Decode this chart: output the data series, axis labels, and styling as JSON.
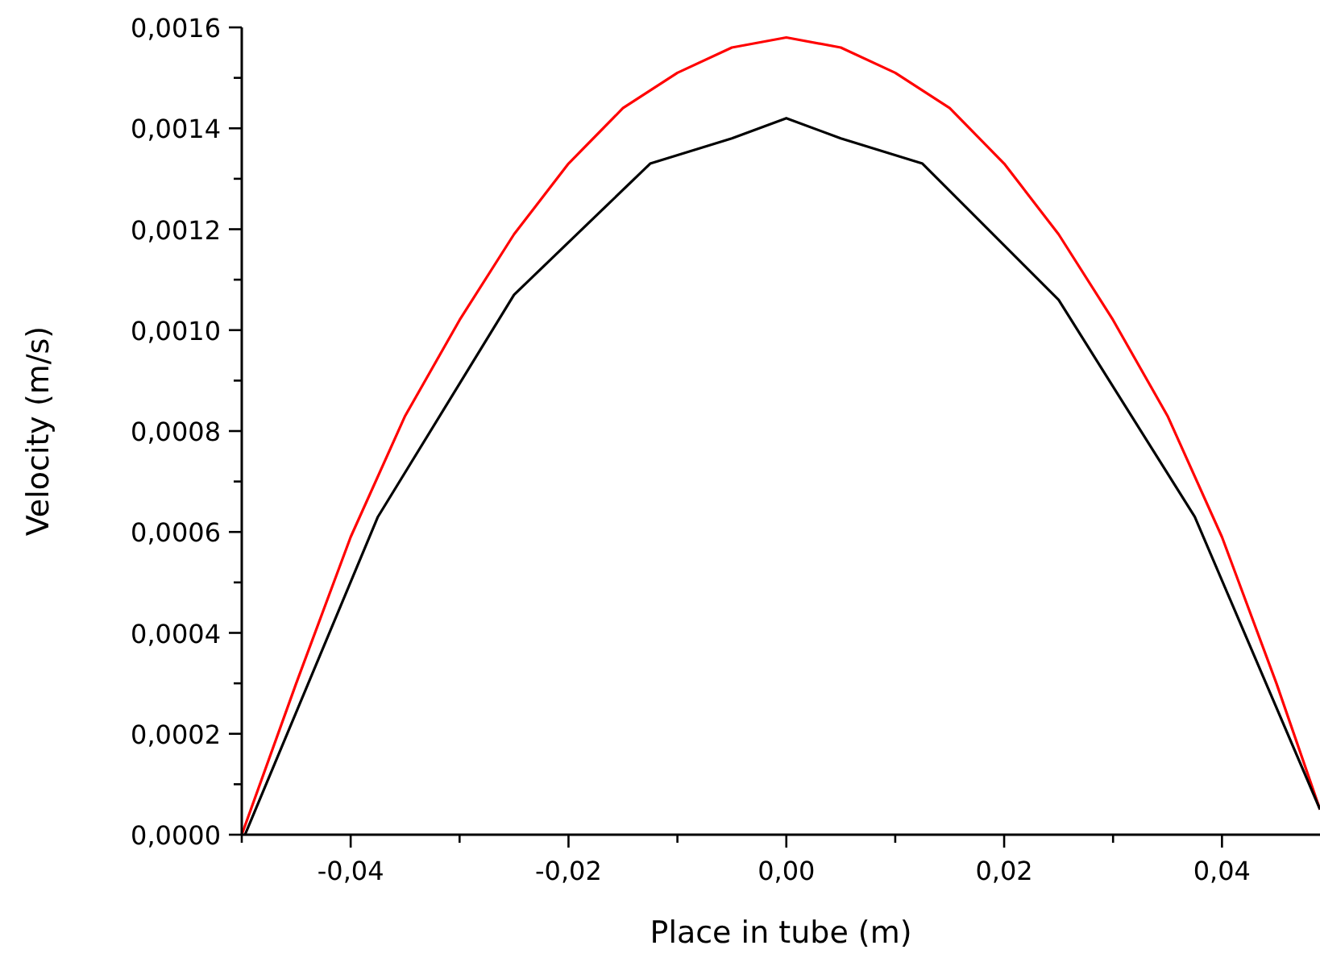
{
  "chart_data": {
    "type": "line",
    "xlabel": "Place in tube (m)",
    "ylabel": "Velocity (m/s)",
    "xlim": [
      -0.05,
      0.049
    ],
    "ylim": [
      0,
      0.0016
    ],
    "xticks": [
      {
        "value": -0.05,
        "label": null
      },
      {
        "value": -0.04,
        "label": "-0,04"
      },
      {
        "value": -0.03,
        "label": null
      },
      {
        "value": -0.02,
        "label": "-0,02"
      },
      {
        "value": -0.01,
        "label": null
      },
      {
        "value": 0,
        "label": "0,00"
      },
      {
        "value": 0.01,
        "label": null
      },
      {
        "value": 0.02,
        "label": "0,02"
      },
      {
        "value": 0.03,
        "label": null
      },
      {
        "value": 0.04,
        "label": "0,04"
      }
    ],
    "yticks": [
      {
        "value": 0,
        "label": "0,0000"
      },
      {
        "value": 0.0001,
        "label": null
      },
      {
        "value": 0.0002,
        "label": "0,0002"
      },
      {
        "value": 0.0003,
        "label": null
      },
      {
        "value": 0.0004,
        "label": "0,0004"
      },
      {
        "value": 0.0005,
        "label": null
      },
      {
        "value": 0.0006,
        "label": "0,0006"
      },
      {
        "value": 0.0007,
        "label": null
      },
      {
        "value": 0.0008,
        "label": "0,0008"
      },
      {
        "value": 0.0009,
        "label": null
      },
      {
        "value": 0.001,
        "label": "0,0010"
      },
      {
        "value": 0.0011,
        "label": null
      },
      {
        "value": 0.0012,
        "label": "0,0012"
      },
      {
        "value": 0.0013,
        "label": null
      },
      {
        "value": 0.0014,
        "label": "0,0014"
      },
      {
        "value": 0.0015,
        "label": null
      },
      {
        "value": 0.0016,
        "label": "0,0016"
      }
    ],
    "grid": false,
    "marker": "none",
    "line_style": "solid",
    "series": [
      {
        "color": "#ff0000",
        "x": [
          -0.05,
          -0.045,
          -0.04,
          -0.035,
          -0.03,
          -0.025,
          -0.02,
          -0.015,
          -0.01,
          -0.005,
          0,
          0.005,
          0.01,
          0.015,
          0.02,
          0.025,
          0.03,
          0.035,
          0.04,
          0.045,
          0.049
        ],
        "values": [
          0,
          0.0003,
          0.00059,
          0.00083,
          0.00102,
          0.00119,
          0.00133,
          0.00144,
          0.00151,
          0.00156,
          0.00158,
          0.00156,
          0.00151,
          0.00144,
          0.00133,
          0.00119,
          0.00102,
          0.00083,
          0.00059,
          0.0003,
          5e-05
        ]
      },
      {
        "color": "#000000",
        "x": [
          -0.0497,
          -0.0375,
          -0.025,
          -0.0125,
          -0.005,
          0,
          0.005,
          0.0125,
          0.025,
          0.0375,
          0.049
        ],
        "values": [
          0,
          0.00063,
          0.00107,
          0.00133,
          0.00138,
          0.00142,
          0.00138,
          0.00133,
          0.00106,
          0.00063,
          5e-05
        ]
      }
    ]
  }
}
